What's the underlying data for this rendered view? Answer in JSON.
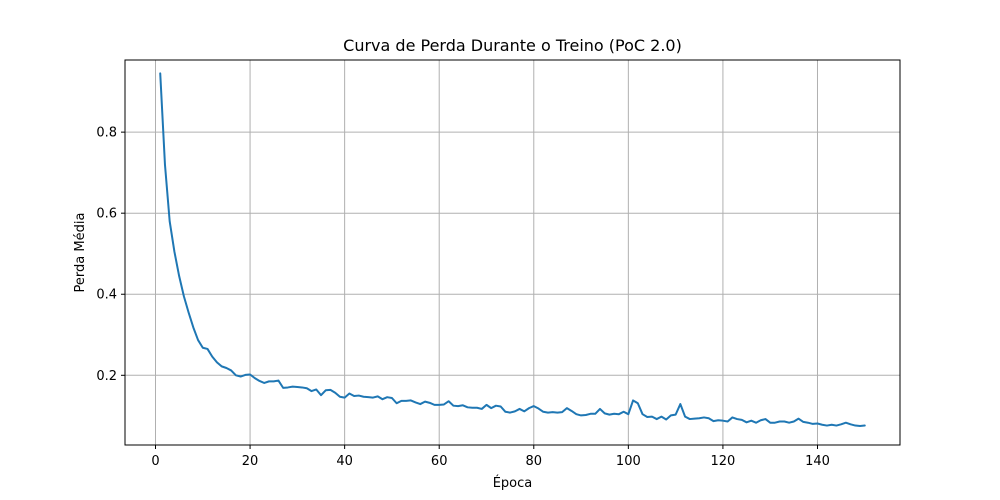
{
  "chart_data": {
    "type": "line",
    "title": "Curva de Perda Durante o Treino (PoC 2.0)",
    "xlabel": "Época",
    "ylabel": "Perda Média",
    "xlim": [
      -6.45,
      157.45
    ],
    "ylim": [
      0.028,
      0.978
    ],
    "xticks": [
      0,
      20,
      40,
      60,
      80,
      100,
      120,
      140
    ],
    "yticks": [
      0.2,
      0.4,
      0.6,
      0.8
    ],
    "grid": true,
    "color": "#1f77b4",
    "series": [
      {
        "x": [
          1,
          2,
          3,
          4,
          5,
          6,
          7,
          8,
          9,
          10,
          11,
          12,
          13,
          14,
          15,
          16,
          17,
          18,
          19,
          20,
          21,
          22,
          23,
          24,
          25,
          26,
          27,
          28,
          29,
          30,
          31,
          32,
          33,
          34,
          35,
          36,
          37,
          38,
          39,
          40,
          41,
          42,
          43,
          44,
          45,
          46,
          47,
          48,
          49,
          50,
          51,
          52,
          53,
          54,
          55,
          56,
          57,
          58,
          59,
          60,
          61,
          62,
          63,
          64,
          65,
          66,
          67,
          68,
          69,
          70,
          71,
          72,
          73,
          74,
          75,
          76,
          77,
          78,
          79,
          80,
          81,
          82,
          83,
          84,
          85,
          86,
          87,
          88,
          89,
          90,
          91,
          92,
          93,
          94,
          95,
          96,
          97,
          98,
          99,
          100,
          101,
          102,
          103,
          104,
          105,
          106,
          107,
          108,
          109,
          110,
          111,
          112,
          113,
          114,
          115,
          116,
          117,
          118,
          119,
          120,
          121,
          122,
          123,
          124,
          125,
          126,
          127,
          128,
          129,
          130,
          131,
          132,
          133,
          134,
          135,
          136,
          137,
          138,
          139,
          140,
          141,
          142,
          143,
          144,
          145,
          146,
          147,
          148,
          149,
          150
        ],
        "y": [
          0.945,
          0.72,
          0.58,
          0.505,
          0.445,
          0.395,
          0.355,
          0.318,
          0.287,
          0.268,
          0.265,
          0.246,
          0.232,
          0.222,
          0.218,
          0.212,
          0.2,
          0.197,
          0.201,
          0.202,
          0.193,
          0.186,
          0.181,
          0.185,
          0.185,
          0.187,
          0.169,
          0.17,
          0.172,
          0.171,
          0.17,
          0.168,
          0.161,
          0.165,
          0.151,
          0.163,
          0.164,
          0.157,
          0.147,
          0.145,
          0.155,
          0.149,
          0.15,
          0.147,
          0.146,
          0.145,
          0.148,
          0.141,
          0.146,
          0.144,
          0.131,
          0.137,
          0.137,
          0.138,
          0.133,
          0.129,
          0.135,
          0.132,
          0.127,
          0.127,
          0.128,
          0.136,
          0.125,
          0.124,
          0.126,
          0.121,
          0.12,
          0.12,
          0.117,
          0.127,
          0.119,
          0.125,
          0.123,
          0.11,
          0.108,
          0.111,
          0.117,
          0.111,
          0.119,
          0.124,
          0.118,
          0.11,
          0.108,
          0.109,
          0.108,
          0.109,
          0.119,
          0.112,
          0.104,
          0.101,
          0.102,
          0.105,
          0.105,
          0.117,
          0.106,
          0.103,
          0.105,
          0.104,
          0.11,
          0.104,
          0.138,
          0.131,
          0.104,
          0.097,
          0.098,
          0.092,
          0.098,
          0.091,
          0.101,
          0.103,
          0.129,
          0.098,
          0.092,
          0.093,
          0.094,
          0.096,
          0.094,
          0.087,
          0.089,
          0.088,
          0.086,
          0.096,
          0.092,
          0.09,
          0.084,
          0.088,
          0.083,
          0.089,
          0.092,
          0.083,
          0.083,
          0.086,
          0.086,
          0.083,
          0.086,
          0.093,
          0.085,
          0.083,
          0.08,
          0.081,
          0.078,
          0.076,
          0.078,
          0.076,
          0.079,
          0.083,
          0.079,
          0.076,
          0.075,
          0.076
        ]
      }
    ]
  }
}
